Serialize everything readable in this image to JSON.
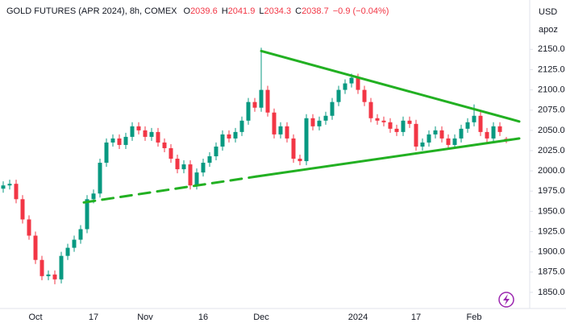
{
  "chart_data": {
    "type": "candlestick",
    "title": "GOLD FUTURES (APR 2024), 8h, COMEX",
    "ohlc": [
      {
        "label": "O",
        "value": 2039.6
      },
      {
        "label": "H",
        "value": 2041.9
      },
      {
        "label": "L",
        "value": 2034.3
      },
      {
        "label": "C",
        "value": 2038.7
      }
    ],
    "change": "−0.9 (−0.04%)",
    "y_unit": "USD",
    "y_subtitle": "apoz",
    "up_color": "#089981",
    "down_color": "#f23645",
    "trend_color": "#22b022",
    "categories": [
      null,
      null,
      null,
      null,
      null,
      "Oct",
      null,
      null,
      null,
      null,
      null,
      null,
      null,
      null,
      "17",
      null,
      null,
      null,
      null,
      null,
      null,
      null,
      "Nov",
      null,
      null,
      null,
      null,
      null,
      null,
      null,
      null,
      "16",
      null,
      null,
      null,
      null,
      null,
      null,
      null,
      null,
      "Dec",
      null,
      null,
      null,
      null,
      null,
      null,
      null,
      null,
      null,
      null,
      null,
      null,
      null,
      null,
      "2024",
      null,
      null,
      null,
      null,
      null,
      null,
      null,
      null,
      "17",
      null,
      null,
      null,
      null,
      null,
      null,
      null,
      null,
      "Feb",
      null,
      null,
      null,
      null,
      null
    ],
    "open": [
      1978,
      1982,
      1984,
      1965,
      1940,
      1920,
      1890,
      1870,
      1872,
      1866,
      1895,
      1905,
      1915,
      1928,
      1965,
      1972,
      2010,
      2035,
      2040,
      2032,
      2042,
      2055,
      2050,
      2042,
      2048,
      2035,
      2028,
      2015,
      2002,
      2008,
      1982,
      1998,
      2010,
      2018,
      2030,
      2045,
      2040,
      2048,
      2062,
      2085,
      2078,
      2100,
      2072,
      2045,
      2055,
      2040,
      2015,
      2012,
      2065,
      2055,
      2062,
      2068,
      2085,
      2100,
      2108,
      2115,
      2100,
      2085,
      2065,
      2062,
      2060,
      2052,
      2048,
      2062,
      2058,
      2030,
      2035,
      2045,
      2050,
      2040,
      2032,
      2040,
      2052,
      2060,
      2068,
      2048,
      2040,
      2055,
      2039.6
    ],
    "high": [
      1987,
      1989,
      1989,
      1970,
      1945,
      1925,
      1895,
      1877,
      1877,
      1900,
      1910,
      1920,
      1933,
      1970,
      1977,
      2015,
      2040,
      2045,
      2045,
      2047,
      2060,
      2060,
      2055,
      2053,
      2053,
      2040,
      2033,
      2020,
      2013,
      2013,
      2003,
      2015,
      2023,
      2035,
      2050,
      2050,
      2053,
      2067,
      2090,
      2090,
      2152,
      2105,
      2077,
      2060,
      2060,
      2045,
      2020,
      2070,
      2070,
      2067,
      2073,
      2090,
      2105,
      2113,
      2120,
      2120,
      2105,
      2090,
      2070,
      2067,
      2065,
      2057,
      2067,
      2067,
      2063,
      2040,
      2050,
      2055,
      2055,
      2045,
      2045,
      2057,
      2065,
      2082,
      2073,
      2053,
      2060,
      2060,
      2041.9
    ],
    "low": [
      1973,
      1977,
      1960,
      1935,
      1915,
      1885,
      1865,
      1865,
      1860,
      1861,
      1890,
      1900,
      1910,
      1923,
      1960,
      1967,
      2005,
      2030,
      2027,
      2027,
      2037,
      2045,
      2037,
      2037,
      2030,
      2023,
      2010,
      1997,
      1997,
      1977,
      1977,
      1993,
      2005,
      2013,
      2025,
      2035,
      2035,
      2043,
      2057,
      2073,
      2073,
      2067,
      2040,
      2040,
      2035,
      2010,
      2007,
      2007,
      2050,
      2050,
      2057,
      2063,
      2080,
      2095,
      2103,
      2095,
      2080,
      2060,
      2057,
      2055,
      2047,
      2043,
      2043,
      2053,
      2025,
      2025,
      2030,
      2040,
      2035,
      2027,
      2027,
      2035,
      2047,
      2055,
      2043,
      2035,
      2035,
      2043,
      2034.3
    ],
    "close": [
      1982,
      1984,
      1965,
      1940,
      1920,
      1890,
      1870,
      1872,
      1866,
      1895,
      1905,
      1915,
      1928,
      1965,
      1972,
      2010,
      2035,
      2040,
      2032,
      2042,
      2055,
      2050,
      2042,
      2048,
      2035,
      2028,
      2015,
      2002,
      2008,
      1982,
      1998,
      2010,
      2018,
      2030,
      2045,
      2040,
      2048,
      2062,
      2085,
      2078,
      2100,
      2072,
      2045,
      2055,
      2040,
      2015,
      2012,
      2065,
      2055,
      2062,
      2068,
      2085,
      2100,
      2108,
      2115,
      2100,
      2085,
      2065,
      2062,
      2060,
      2052,
      2048,
      2062,
      2058,
      2030,
      2035,
      2045,
      2050,
      2040,
      2032,
      2040,
      2052,
      2060,
      2068,
      2048,
      2040,
      2055,
      2048,
      2038.7
    ],
    "trendlines": [
      {
        "start": [
          40,
          2148
        ],
        "end": [
          80,
          2061
        ],
        "style": "solid"
      },
      {
        "start": [
          12.5,
          1961
        ],
        "end": [
          39.25,
          1993
        ],
        "style": "dashed"
      },
      {
        "start": [
          39.25,
          1993
        ],
        "end": [
          80,
          2040
        ],
        "style": "solid"
      }
    ],
    "ylim": [
      1833,
      2211
    ],
    "yticks": [
      {
        "value": 1850,
        "label": "1850.0"
      },
      {
        "value": 1875,
        "label": "1875.0"
      },
      {
        "value": 1900,
        "label": "1900.0"
      },
      {
        "value": 1925,
        "label": "1925.0"
      },
      {
        "value": 1950,
        "label": "1950.0"
      },
      {
        "value": 1975,
        "label": "1975.0"
      },
      {
        "value": 2000,
        "label": "2000.0"
      },
      {
        "value": 2025,
        "label": "2025.0"
      },
      {
        "value": 2050,
        "label": "2050.0"
      },
      {
        "value": 2075,
        "label": "2075.0"
      },
      {
        "value": 2100,
        "label": "2100.0"
      },
      {
        "value": 2125,
        "label": "2125.0"
      },
      {
        "value": 2150,
        "label": "2150.0"
      }
    ],
    "grid": false
  }
}
